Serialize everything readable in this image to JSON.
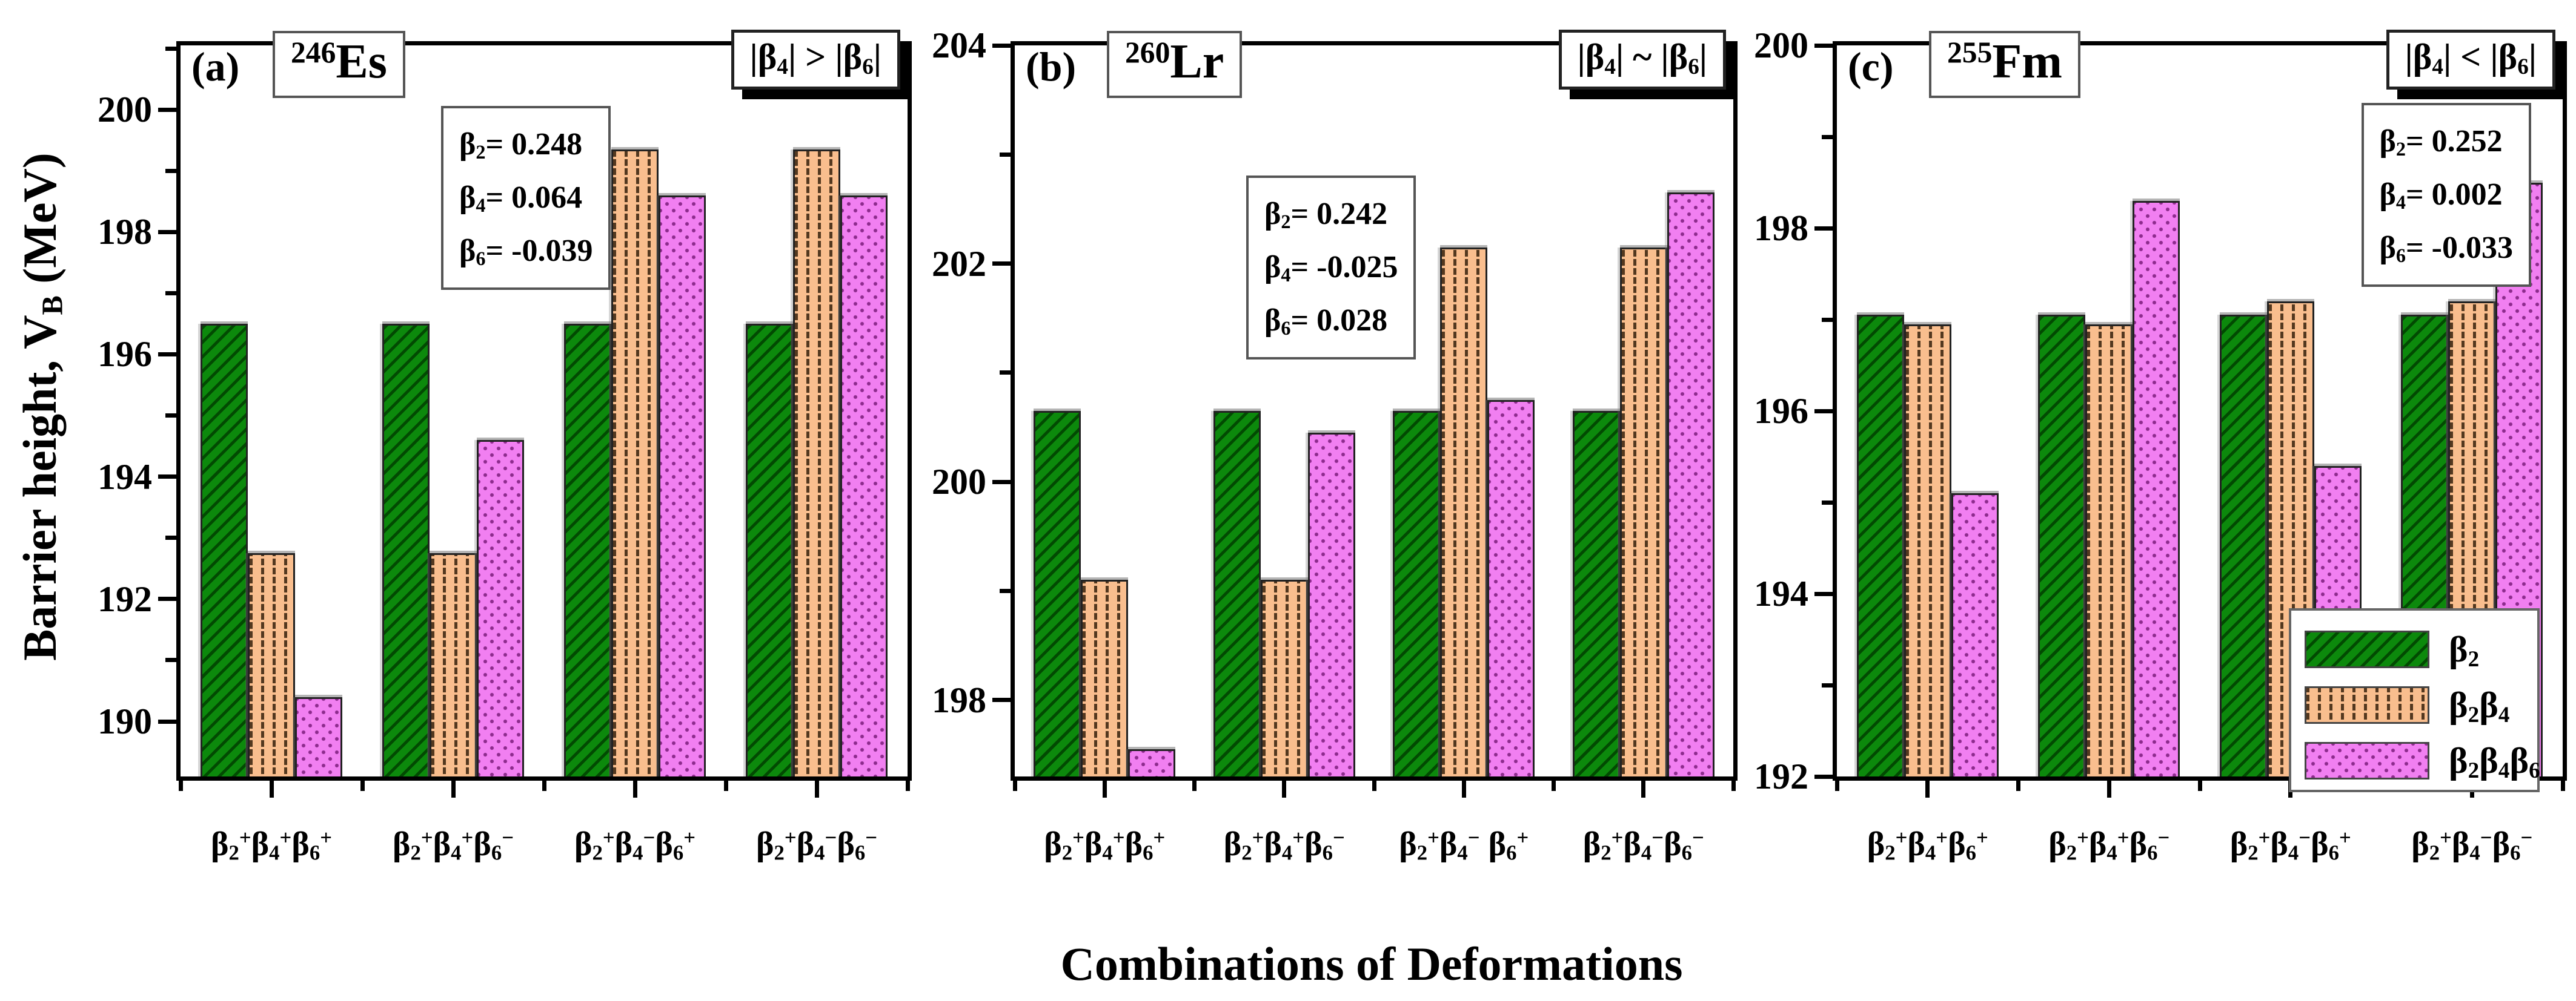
{
  "figure": {
    "x_axis_title": "Combinations of Deformations",
    "y_axis_title_html": "Barrier height, V<sub>B</sub> (MeV)",
    "colors": {
      "series_beta2_fill": "#0c890c",
      "series_beta2_hatch": "#024a02",
      "series_beta2beta4_fill": "#f9be8e",
      "series_beta2beta4_hatch": "#53381f",
      "series_beta2beta4beta6_fill": "#f17ff1",
      "series_beta2beta4beta6_dot": "#8d2b8d",
      "frame": "#000000",
      "box_shadow": "#000000"
    }
  },
  "legend": {
    "items": [
      {
        "label_html": "β<sub>2</sub>",
        "series_class": "s0"
      },
      {
        "label_html": "β<sub>2</sub>β<sub>4</sub>",
        "series_class": "s1"
      },
      {
        "label_html": "β<sub>2</sub>β<sub>4</sub>β<sub>6</sub>",
        "series_class": "s2"
      }
    ]
  },
  "chart_data": [
    {
      "type": "bar",
      "panel_label": "(a)",
      "isotope_html": "<sup>246</sup>Es",
      "condition_html": "|β<sub>4</sub>| &gt; |β<sub>6</sub>|",
      "deformation_params": {
        "beta2": 0.248,
        "beta4": 0.064,
        "beta6": -0.039
      },
      "params_html": [
        "β<sub>2</sub>= 0.248",
        "β<sub>4</sub>= 0.064",
        "β<sub>6</sub>= -0.039"
      ],
      "categories_html": [
        "β<sub>2</sub><sup>+</sup>β<sub>4</sub><sup>+</sup>β<sub>6</sub><sup>+</sup>",
        "β<sub>2</sub><sup>+</sup>β<sub>4</sub><sup>+</sup>β<sub>6</sub><sup>−</sup>",
        "β<sub>2</sub><sup>+</sup>β<sub>4</sub><sup>−</sup>β<sub>6</sub><sup>+</sup>",
        "β<sub>2</sub><sup>+</sup>β<sub>4</sub><sup>−</sup>β<sub>6</sub><sup>−</sup>"
      ],
      "series": [
        {
          "name_html": "β<sub>2</sub>",
          "values": [
            196.5,
            196.5,
            196.5,
            196.5
          ]
        },
        {
          "name_html": "β<sub>2</sub>β<sub>4</sub>",
          "values": [
            192.75,
            192.75,
            199.35,
            199.35
          ]
        },
        {
          "name_html": "β<sub>2</sub>β<sub>4</sub>β<sub>6</sub>",
          "values": [
            190.4,
            194.6,
            198.6,
            198.6
          ]
        }
      ],
      "ylabel": "Barrier height, V_B (MeV)",
      "ylim": [
        189.1,
        201.05
      ],
      "yticks_major": [
        190,
        192,
        194,
        196,
        198,
        200
      ],
      "yticks_minor": [
        191,
        193,
        195,
        197,
        199,
        201
      ]
    },
    {
      "type": "bar",
      "panel_label": "(b)",
      "isotope_html": "<sup>260</sup>Lr",
      "condition_html": "|β<sub>4</sub>| ~ |β<sub>6</sub>|",
      "deformation_params": {
        "beta2": 0.242,
        "beta4": -0.025,
        "beta6": 0.028
      },
      "params_html": [
        "β<sub>2</sub>= 0.242",
        "β<sub>4</sub>= -0.025",
        "β<sub>6</sub>= 0.028"
      ],
      "categories_html": [
        "β<sub>2</sub><sup>+</sup>β<sub>4</sub><sup>+</sup>β<sub>6</sub><sup>+</sup>",
        "β<sub>2</sub><sup>+</sup>β<sub>4</sub><sup>+</sup>β<sub>6</sub><sup>−</sup>",
        "β<sub>2</sub><sup>+</sup>β<sub>4</sub><sup>−</sup> β<sub>6</sub><sup>+</sup>",
        "β<sub>2</sub><sup>+</sup>β<sub>4</sub><sup>−</sup>β<sub>6</sub><sup>−</sup>"
      ],
      "series": [
        {
          "name_html": "β<sub>2</sub>",
          "values": [
            200.65,
            200.65,
            200.65,
            200.65
          ]
        },
        {
          "name_html": "β<sub>2</sub>β<sub>4</sub>",
          "values": [
            199.1,
            199.1,
            202.15,
            202.15
          ]
        },
        {
          "name_html": "β<sub>2</sub>β<sub>4</sub>β<sub>6</sub>",
          "values": [
            197.55,
            200.45,
            200.75,
            202.65
          ]
        }
      ],
      "ylabel": "Barrier height, V_B (MeV)",
      "ylim": [
        197.3,
        204
      ],
      "yticks_major": [
        198,
        200,
        202,
        204
      ],
      "yticks_minor": [
        199,
        201,
        203
      ]
    },
    {
      "type": "bar",
      "panel_label": "(c)",
      "isotope_html": "<sup>255</sup>Fm",
      "condition_html": "|β<sub>4</sub>| &lt; |β<sub>6</sub>|",
      "deformation_params": {
        "beta2": 0.252,
        "beta4": 0.002,
        "beta6": -0.033
      },
      "params_html": [
        "β<sub>2</sub>= 0.252",
        "β<sub>4</sub>= 0.002",
        "β<sub>6</sub>= -0.033"
      ],
      "categories_html": [
        "β<sub>2</sub><sup>+</sup>β<sub>4</sub><sup>+</sup>β<sub>6</sub><sup>+</sup>",
        "β<sub>2</sub><sup>+</sup>β<sub>4</sub><sup>+</sup>β<sub>6</sub><sup>−</sup>",
        "β<sub>2</sub><sup>+</sup>β<sub>4</sub><sup>−</sup>β<sub>6</sub><sup>+</sup>",
        "β<sub>2</sub><sup>+</sup>β<sub>4</sub><sup>−</sup>β<sub>6</sub><sup>−</sup>"
      ],
      "series": [
        {
          "name_html": "β<sub>2</sub>",
          "values": [
            197.05,
            197.05,
            197.05,
            197.05
          ]
        },
        {
          "name_html": "β<sub>2</sub>β<sub>4</sub>",
          "values": [
            196.95,
            196.95,
            197.2,
            197.2
          ]
        },
        {
          "name_html": "β<sub>2</sub>β<sub>4</sub>β<sub>6</sub>",
          "values": [
            195.1,
            198.3,
            195.4,
            198.5
          ]
        }
      ],
      "ylabel": "Barrier height, V_B (MeV)",
      "ylim": [
        192,
        200
      ],
      "yticks_major": [
        192,
        194,
        196,
        198,
        200
      ],
      "yticks_minor": [
        193,
        195,
        197,
        199
      ]
    }
  ]
}
